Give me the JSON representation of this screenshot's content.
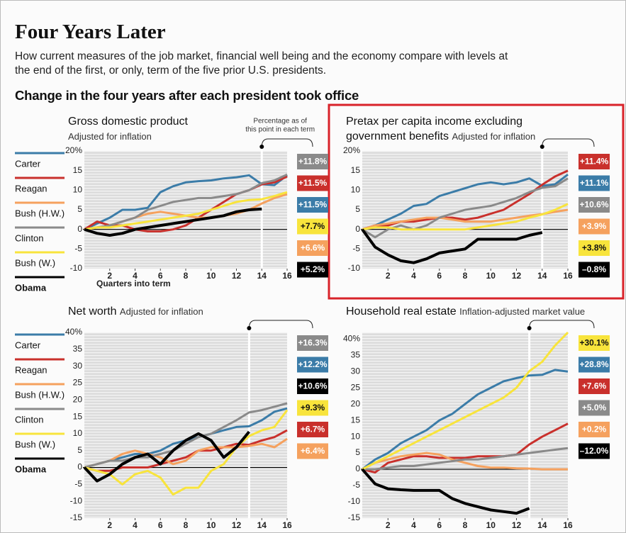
{
  "header": {
    "title": "Four Years Later",
    "subtitle": "How current measures of the job market, financial well being and the economy compare with levels at the end of the first, or only, term of the five prior U.S. presidents.",
    "section": "Change in the four years after each president took office"
  },
  "chart_data": [
    {
      "type": "line",
      "title": "Gross domestic product",
      "subtitle": "Adjusted for inflation",
      "annotation": [
        "Percentage as of",
        "this point in each term"
      ],
      "x_label": "Quarters into term",
      "legend": true,
      "x": [
        0,
        1,
        2,
        3,
        4,
        5,
        6,
        7,
        8,
        9,
        10,
        11,
        12,
        13,
        14,
        15,
        16
      ],
      "xlim": [
        0,
        16
      ],
      "xticks": [
        2,
        4,
        6,
        8,
        10,
        12,
        14,
        16
      ],
      "ylim": [
        -10,
        20
      ],
      "yticks": [
        -10,
        -5,
        0,
        5,
        10,
        15,
        {
          "value": 20,
          "label": "20%"
        }
      ],
      "series": [
        {
          "name": "Carter",
          "color": "#3b7ca8",
          "values": [
            0,
            1.5,
            3,
            5,
            5,
            5.5,
            9.5,
            11,
            12,
            12.3,
            12.5,
            13,
            13.3,
            13.8,
            11.5,
            11.3,
            13.8
          ]
        },
        {
          "name": "Reagan",
          "color": "#c9302c",
          "values": [
            0,
            2,
            1,
            1,
            0,
            -0.5,
            -0.5,
            0,
            1,
            3,
            5,
            7,
            9,
            10,
            11.5,
            12,
            13.5
          ]
        },
        {
          "name": "Bush (H.W.)",
          "color": "#f5a15e",
          "values": [
            0,
            0.5,
            1,
            2,
            3,
            4,
            4.5,
            4,
            3.5,
            3,
            3,
            3.5,
            4,
            5,
            6.6,
            8,
            9
          ]
        },
        {
          "name": "Clinton",
          "color": "#8a8a8a",
          "values": [
            0,
            0.5,
            1,
            2,
            3,
            5,
            6,
            7,
            7.5,
            8,
            8,
            8.5,
            9,
            10,
            11.8,
            12.5,
            14
          ]
        },
        {
          "name": "Bush (W.)",
          "color": "#f8e43c",
          "values": [
            0,
            0.5,
            0.5,
            1,
            1.5,
            2,
            2.5,
            3,
            3.5,
            4,
            5,
            6,
            7,
            7.5,
            7.7,
            8.5,
            9.5
          ]
        },
        {
          "name": "Obama",
          "color": "#000000",
          "values": [
            0,
            -1,
            -1.5,
            -1,
            0,
            0.5,
            1,
            1.5,
            2,
            2.5,
            3,
            3.5,
            4.5,
            5,
            5.2,
            null,
            null
          ]
        }
      ],
      "marker": {
        "x": 14,
        "values": [
          11.8,
          11.5,
          11.5,
          7.7,
          6.6,
          5.2
        ],
        "value_labels": [
          "+11.8%",
          "+11.5%",
          "+11.5%",
          "+7.7%",
          "+6.6%",
          "+5.2%"
        ],
        "colors": [
          "#8a8a8a",
          "#c9302c",
          "#3b7ca8",
          "#f8e43c",
          "#f5a15e",
          "#000000"
        ]
      }
    },
    {
      "type": "line",
      "title": "Pretax per capita income excluding government benefits",
      "subtitle": "Adjusted for inflation",
      "legend": false,
      "x": [
        0,
        1,
        2,
        3,
        4,
        5,
        6,
        7,
        8,
        9,
        10,
        11,
        12,
        13,
        14,
        15,
        16
      ],
      "xlim": [
        0,
        16
      ],
      "xticks": [
        2,
        4,
        6,
        8,
        10,
        12,
        14,
        16
      ],
      "ylim": [
        -10,
        20
      ],
      "yticks": [
        -10,
        -5,
        0,
        5,
        10,
        15,
        {
          "value": 20,
          "label": "20%"
        }
      ],
      "series": [
        {
          "name": "Carter",
          "color": "#3b7ca8",
          "values": [
            0,
            1,
            2.5,
            4,
            6,
            6.5,
            8.5,
            9.5,
            10.5,
            11.5,
            12,
            11.5,
            12,
            13,
            11.1,
            11.5,
            14
          ]
        },
        {
          "name": "Reagan",
          "color": "#c9302c",
          "values": [
            0,
            1,
            1,
            2,
            2,
            2.5,
            3,
            3,
            2.5,
            3,
            4,
            5,
            7,
            9,
            11.4,
            13.5,
            15
          ]
        },
        {
          "name": "Bush (H.W.)",
          "color": "#f5a15e",
          "values": [
            0,
            1,
            1.5,
            2,
            2.5,
            3,
            3,
            2.5,
            2,
            2,
            2,
            2.5,
            3,
            3.5,
            3.9,
            4.5,
            5
          ]
        },
        {
          "name": "Clinton",
          "color": "#8a8a8a",
          "values": [
            0,
            -2,
            0,
            1,
            0,
            1,
            3,
            4,
            5,
            5.5,
            6,
            7,
            8,
            9.5,
            10.6,
            11,
            13
          ]
        },
        {
          "name": "Bush (W.)",
          "color": "#f8e43c",
          "values": [
            0,
            0.5,
            0.5,
            0,
            0,
            0,
            0,
            0,
            0,
            0.5,
            1,
            1.5,
            2,
            3,
            3.8,
            5,
            6.5
          ]
        },
        {
          "name": "Obama",
          "color": "#000000",
          "values": [
            0,
            -4.5,
            -6.5,
            -8,
            -8.5,
            -7.5,
            -6,
            -5.5,
            -5,
            -2.5,
            -2.5,
            -2.5,
            -2.5,
            -1.5,
            -0.8,
            null,
            null
          ]
        }
      ],
      "marker": {
        "x": 14,
        "values": [
          11.4,
          11.1,
          10.6,
          3.9,
          3.8,
          -0.8
        ],
        "value_labels": [
          "+11.4%",
          "+11.1%",
          "+10.6%",
          "+3.9%",
          "+3.8%",
          "–0.8%"
        ],
        "colors": [
          "#c9302c",
          "#3b7ca8",
          "#8a8a8a",
          "#f5a15e",
          "#f8e43c",
          "#000000"
        ]
      }
    },
    {
      "type": "line",
      "title": "Net worth",
      "subtitle": "Adjusted for inflation",
      "legend": true,
      "x": [
        0,
        1,
        2,
        3,
        4,
        5,
        6,
        7,
        8,
        9,
        10,
        11,
        12,
        13,
        14,
        15,
        16
      ],
      "xlim": [
        0,
        16
      ],
      "xticks": [
        2,
        4,
        6,
        8,
        10,
        12,
        14,
        16
      ],
      "ylim": [
        -15,
        40
      ],
      "yticks": [
        -15,
        -10,
        -5,
        0,
        5,
        10,
        15,
        20,
        25,
        30,
        35,
        {
          "value": 40,
          "label": "40%"
        }
      ],
      "series": [
        {
          "name": "Carter",
          "color": "#3b7ca8",
          "values": [
            0,
            1,
            2,
            3,
            4,
            4,
            5,
            7,
            8,
            9,
            10,
            11,
            12,
            12.2,
            14,
            16.5,
            17.5
          ]
        },
        {
          "name": "Reagan",
          "color": "#c9302c",
          "values": [
            0,
            -1,
            -1,
            0,
            0,
            0,
            1,
            2,
            3,
            5,
            5,
            6,
            7,
            6.7,
            8,
            9,
            11
          ]
        },
        {
          "name": "Bush (H.W.)",
          "color": "#f5a15e",
          "values": [
            0,
            1,
            2,
            4,
            5,
            4,
            3,
            1,
            2,
            5,
            6,
            6,
            6,
            6.4,
            7,
            6,
            8.5
          ]
        },
        {
          "name": "Clinton",
          "color": "#8a8a8a",
          "values": [
            0,
            1,
            2,
            2,
            3,
            3,
            4,
            5,
            7,
            9,
            10,
            12,
            14,
            16.3,
            17,
            18,
            19
          ]
        },
        {
          "name": "Bush (W.)",
          "color": "#f8e43c",
          "values": [
            0,
            -1,
            -2,
            -5,
            -2,
            -1,
            -3,
            -8,
            -6,
            -6,
            -1,
            1,
            6,
            9.3,
            11,
            12,
            17
          ]
        },
        {
          "name": "Obama",
          "color": "#000000",
          "values": [
            0,
            -4,
            -2,
            1,
            3,
            4,
            1,
            5,
            8,
            10,
            8,
            3,
            6,
            10.6,
            null,
            null,
            null
          ]
        }
      ],
      "marker": {
        "x": 13,
        "values": [
          16.3,
          12.2,
          10.6,
          9.3,
          6.7,
          6.4
        ],
        "value_labels": [
          "+16.3%",
          "+12.2%",
          "+10.6%",
          "+9.3%",
          "+6.7%",
          "+6.4%"
        ],
        "colors": [
          "#8a8a8a",
          "#3b7ca8",
          "#000000",
          "#f8e43c",
          "#c9302c",
          "#f5a15e"
        ]
      }
    },
    {
      "type": "line",
      "title": "Household real estate",
      "subtitle": "Inflation-adjusted market value",
      "legend": false,
      "x": [
        0,
        1,
        2,
        3,
        4,
        5,
        6,
        7,
        8,
        9,
        10,
        11,
        12,
        13,
        14,
        15,
        16
      ],
      "xlim": [
        0,
        16
      ],
      "xticks": [
        2,
        4,
        6,
        8,
        10,
        12,
        14,
        16
      ],
      "ylim": [
        -15,
        42
      ],
      "yticks": [
        -15,
        -10,
        -5,
        0,
        5,
        10,
        15,
        20,
        25,
        30,
        35,
        {
          "value": 40,
          "label": "40%"
        }
      ],
      "series": [
        {
          "name": "Carter",
          "color": "#3b7ca8",
          "values": [
            0,
            3,
            5,
            8,
            10,
            12,
            15,
            17,
            20,
            23,
            25,
            27,
            28,
            28.8,
            29,
            30.5,
            30
          ]
        },
        {
          "name": "Reagan",
          "color": "#c9302c",
          "values": [
            0,
            -1,
            2,
            3,
            4,
            4,
            3.5,
            3.5,
            3.5,
            4,
            4,
            4,
            4.5,
            7.6,
            10,
            12,
            14
          ]
        },
        {
          "name": "Bush (H.W.)",
          "color": "#f5a15e",
          "values": [
            0,
            2,
            3,
            4,
            4.5,
            5,
            4.5,
            3,
            2,
            1,
            0.5,
            0.5,
            0.3,
            0.2,
            0,
            0,
            0
          ]
        },
        {
          "name": "Clinton",
          "color": "#8a8a8a",
          "values": [
            0,
            0,
            0.5,
            1,
            1,
            1.5,
            2,
            2.5,
            3,
            3,
            3.5,
            4,
            4.5,
            5,
            5.5,
            6,
            6.5
          ]
        },
        {
          "name": "Bush (W.)",
          "color": "#f8e43c",
          "values": [
            0,
            2,
            4,
            6,
            8,
            10,
            12,
            14,
            16,
            18,
            20,
            22,
            25,
            30.1,
            33,
            38,
            42
          ]
        },
        {
          "name": "Obama",
          "color": "#000000",
          "values": [
            0,
            -4.5,
            -6,
            -6.3,
            -6.5,
            -6.5,
            -6.5,
            -9,
            -10.5,
            -11.5,
            -12.5,
            -13,
            -13.5,
            -12,
            null,
            null,
            null
          ]
        }
      ],
      "marker": {
        "x": 13,
        "values": [
          30.1,
          28.8,
          7.6,
          5.0,
          0.2,
          -12.0
        ],
        "value_labels": [
          "+30.1%",
          "+28.8%",
          "+7.6%",
          "+5.0%",
          "+0.2%",
          "–12.0%"
        ],
        "colors": [
          "#f8e43c",
          "#3b7ca8",
          "#c9302c",
          "#8a8a8a",
          "#f5a15e",
          "#000000"
        ]
      }
    }
  ]
}
